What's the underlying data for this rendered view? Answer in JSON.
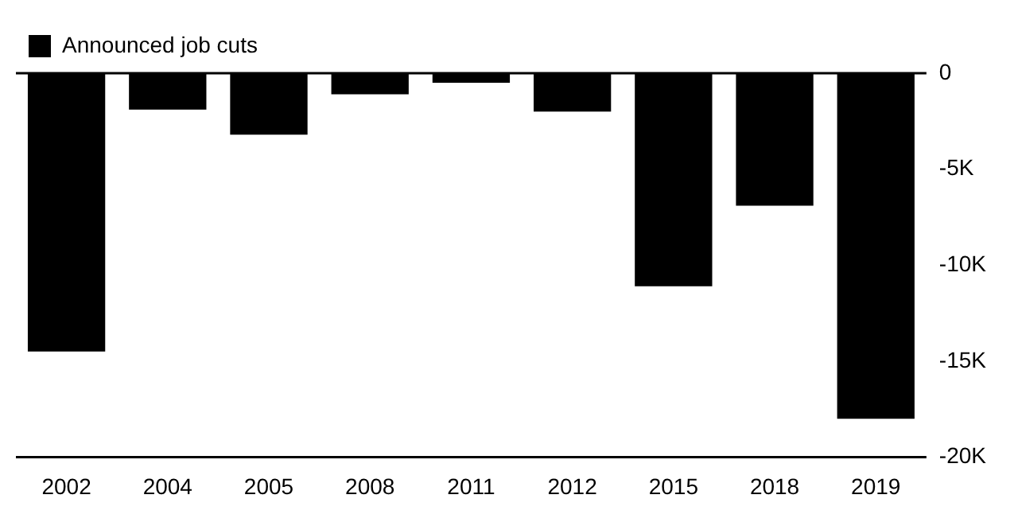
{
  "chart_data": {
    "type": "bar",
    "categories": [
      "2002",
      "2004",
      "2005",
      "2008",
      "2011",
      "2012",
      "2015",
      "2018",
      "2019"
    ],
    "series": [
      {
        "name": "Announced job cuts",
        "color": "#000000",
        "values": [
          -14.5,
          -1.9,
          -3.2,
          -1.1,
          -0.5,
          -2.0,
          -11.1,
          -6.9,
          -18.0
        ]
      }
    ],
    "ylim": [
      -20,
      0
    ],
    "yticks": [
      {
        "value": 0,
        "label": "0"
      },
      {
        "value": -5,
        "label": "-5K"
      },
      {
        "value": -10,
        "label": "-10K"
      },
      {
        "value": -15,
        "label": "-15K"
      },
      {
        "value": -20,
        "label": "-20K"
      }
    ],
    "grid": false,
    "legend": "top left"
  }
}
